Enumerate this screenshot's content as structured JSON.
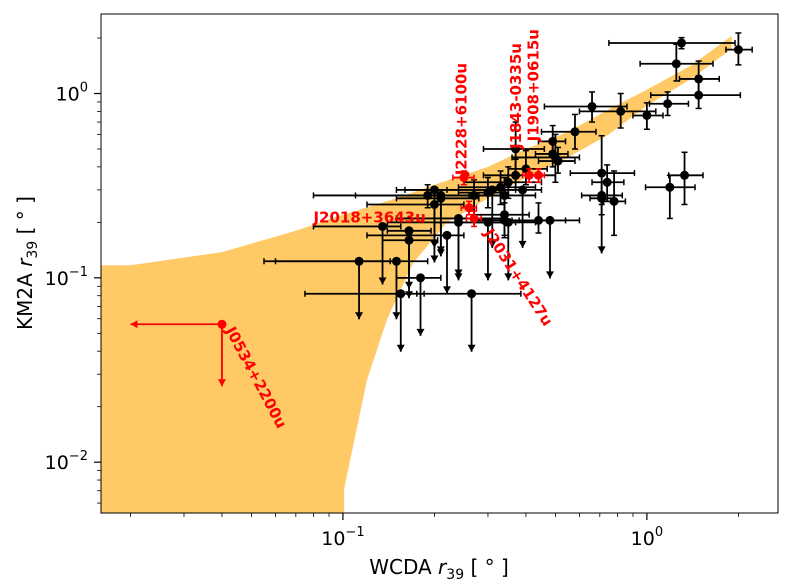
{
  "chart_data": {
    "type": "scatter",
    "x_scale": "log",
    "y_scale": "log",
    "xlabel_text": "WCDA",
    "xlabel_sym": "r",
    "xlabel_sub": "39",
    "xlabel_unit": "[ ° ]",
    "ylabel_text": "KM2A",
    "ylabel_sym": "r",
    "ylabel_sub": "39",
    "ylabel_unit": "[ ° ]",
    "xlim": [
      0.016,
      2.7
    ],
    "ylim": [
      0.0053,
      2.7
    ],
    "x_ticks": [
      {
        "value": 0.1,
        "mant": "10",
        "exp": "−1"
      },
      {
        "value": 1.0,
        "mant": "10",
        "exp": "0"
      }
    ],
    "y_ticks": [
      {
        "value": 0.01,
        "mant": "10",
        "exp": "−2"
      },
      {
        "value": 0.1,
        "mant": "10",
        "exp": "−1"
      },
      {
        "value": 1.0,
        "mant": "10",
        "exp": "0"
      }
    ],
    "band_color": "#ffc966",
    "point_color": "#000000",
    "highlight_color": "#ff0000",
    "band_upper": [
      [
        0.016,
        0.117
      ],
      [
        0.02,
        0.117
      ],
      [
        0.04,
        0.138
      ],
      [
        0.07,
        0.18
      ],
      [
        0.1,
        0.22
      ],
      [
        0.15,
        0.27
      ],
      [
        0.2,
        0.32
      ],
      [
        0.3,
        0.4
      ],
      [
        0.4,
        0.5
      ],
      [
        0.55,
        0.62
      ],
      [
        0.75,
        0.82
      ],
      [
        1.0,
        1.05
      ],
      [
        1.4,
        1.42
      ],
      [
        1.9,
        2.05
      ]
    ],
    "band_lower": [
      [
        1.9,
        1.75
      ],
      [
        1.4,
        1.2
      ],
      [
        1.0,
        0.86
      ],
      [
        0.75,
        0.6
      ],
      [
        0.55,
        0.45
      ],
      [
        0.4,
        0.35
      ],
      [
        0.3,
        0.27
      ],
      [
        0.22,
        0.2
      ],
      [
        0.17,
        0.12
      ],
      [
        0.14,
        0.06
      ],
      [
        0.12,
        0.028
      ],
      [
        0.101,
        0.0072
      ],
      [
        0.101,
        0.0053
      ],
      [
        0.016,
        0.0053
      ]
    ],
    "points": [
      {
        "x": 1.3,
        "y": 1.88,
        "xerr": [
          0.55,
          0.65
        ],
        "yerr": [
          0.13,
          0.13
        ]
      },
      {
        "x": 2.0,
        "y": 1.73,
        "xerr": [
          0.18,
          0.22
        ],
        "yerr": [
          0.3,
          0.4
        ]
      },
      {
        "x": 1.25,
        "y": 1.45,
        "xerr": [
          0.3,
          0.4
        ],
        "yerr": [
          0.28,
          0.4
        ]
      },
      {
        "x": 1.48,
        "y": 1.2,
        "xerr": [
          0.2,
          0.25
        ],
        "yerr": [
          0.2,
          0.3
        ]
      },
      {
        "x": 1.48,
        "y": 0.98,
        "xerr": [
          0.45,
          0.55
        ],
        "yerr": [
          0.15,
          0.2
        ]
      },
      {
        "x": 1.17,
        "y": 0.88,
        "xerr": [
          0.15,
          0.2
        ],
        "yerr": [
          0.12,
          0.14
        ]
      },
      {
        "x": 0.66,
        "y": 0.85,
        "xerr": [
          0.2,
          0.2
        ],
        "yerr": [
          0.15,
          0.17
        ]
      },
      {
        "x": 0.82,
        "y": 0.8,
        "xerr": [
          0.22,
          0.25
        ],
        "yerr": [
          0.15,
          0.2
        ]
      },
      {
        "x": 1.0,
        "y": 0.76,
        "xerr": [
          0.1,
          0.13
        ],
        "yerr": [
          0.12,
          0.13
        ]
      },
      {
        "x": 0.58,
        "y": 0.62,
        "xerr": [
          0.13,
          0.1
        ],
        "yerr": [
          0.12,
          0.15
        ]
      },
      {
        "x": 0.37,
        "y": 0.5,
        "xerr": [
          0.08,
          0.09
        ],
        "yerr": [
          0.15,
          0.2
        ]
      },
      {
        "x": 0.49,
        "y": 0.55,
        "xerr": [
          0.05,
          0.05
        ],
        "yerr": [
          0.08,
          0.12
        ]
      },
      {
        "x": 0.49,
        "y": 0.47,
        "xerr": [
          0.06,
          0.06
        ],
        "yerr": [
          0.07,
          0.09
        ]
      },
      {
        "x": 0.51,
        "y": 0.43,
        "xerr": [
          0.07,
          0.07
        ],
        "yerr": [
          0.06,
          0.08
        ]
      },
      {
        "x": 0.5,
        "y": 0.45,
        "xerr": [
          0.14,
          0.1
        ],
        "yerr": [
          0.12,
          0.15
        ]
      },
      {
        "x": 0.4,
        "y": 0.39,
        "xerr": [
          0.05,
          0.07
        ],
        "yerr": [
          0.07,
          0.1
        ]
      },
      {
        "x": 0.37,
        "y": 0.36,
        "xerr": [
          0.08,
          0.13
        ],
        "yerr": [
          0.06,
          0.08
        ]
      },
      {
        "x": 0.35,
        "y": 0.33,
        "xerr": [
          0.1,
          0.1
        ],
        "yerr": [
          0.06,
          0.07
        ]
      },
      {
        "x": 0.33,
        "y": 0.31,
        "xerr": [
          0.09,
          0.1
        ],
        "yerr": [
          0.06,
          0.07
        ]
      },
      {
        "x": 0.34,
        "y": 0.28,
        "xerr": [
          0.07,
          0.09
        ],
        "yerr": [
          0.06,
          0.07
        ]
      },
      {
        "x": 0.27,
        "y": 0.28,
        "xerr": [
          0.06,
          0.06
        ],
        "yerr": [
          0.06,
          0.06
        ]
      },
      {
        "x": 0.3,
        "y": 0.29,
        "xerr": [
          0.06,
          0.05
        ],
        "yerr": [
          0.05,
          0.06
        ]
      },
      {
        "x": 0.71,
        "y": 0.37,
        "xerr": [
          0.15,
          0.2
        ],
        "yerr": [
          0.12,
          0.22
        ]
      },
      {
        "x": 1.33,
        "y": 0.36,
        "xerr": [
          0.15,
          0.2
        ],
        "yerr": [
          0.11,
          0.12
        ]
      },
      {
        "x": 0.74,
        "y": 0.33,
        "xerr": [
          0.08,
          0.1
        ],
        "yerr": [
          0.07,
          0.08
        ]
      },
      {
        "x": 1.19,
        "y": 0.31,
        "xerr": [
          0.2,
          0.25
        ],
        "yerr": [
          0.1,
          0.05
        ]
      },
      {
        "x": 0.71,
        "y": 0.27,
        "xerr": [
          0.06,
          0.07
        ],
        "yerr": [
          0.05,
          0.06
        ]
      },
      {
        "x": 0.78,
        "y": 0.26,
        "xerr": [
          0.06,
          0.07
        ],
        "yerr": [
          0.09,
          0.12
        ]
      },
      {
        "x": 0.34,
        "y": 0.22,
        "xerr": [
          0.07,
          0.07
        ],
        "yerr": [
          0.05,
          0.07
        ]
      },
      {
        "x": 0.34,
        "y": 0.205,
        "xerr": [
          0.07,
          0.13
        ],
        "yerr": [
          0.04,
          0.05
        ]
      },
      {
        "x": 0.44,
        "y": 0.205,
        "xerr": [
          0.08,
          0.1
        ],
        "yerr": [
          0.03,
          0.05
        ]
      },
      {
        "x": 0.19,
        "y": 0.28,
        "xerr": [
          0.08,
          0.09
        ],
        "yerr": [
          0.04,
          0.04
        ]
      }
    ],
    "upper_limits": [
      {
        "x": 0.48,
        "y": 0.205,
        "xerr": [
          0.1,
          0.12
        ]
      },
      {
        "x": 0.71,
        "y": 0.28,
        "xerr": [
          0.1,
          0.12
        ]
      },
      {
        "x": 0.35,
        "y": 0.2,
        "xerr": [
          0.08,
          0.08
        ]
      },
      {
        "x": 0.39,
        "y": 0.3,
        "xerr": [
          0.2,
          0.06
        ]
      },
      {
        "x": 0.31,
        "y": 0.3,
        "xerr": [
          0.15,
          0.06
        ]
      },
      {
        "x": 0.3,
        "y": 0.2,
        "xerr": [
          0.1,
          0.07
        ]
      },
      {
        "x": 0.24,
        "y": 0.21,
        "xerr": [
          0.09,
          0.1
        ]
      },
      {
        "x": 0.24,
        "y": 0.2,
        "xerr": [
          0.1,
          0.1
        ]
      },
      {
        "x": 0.21,
        "y": 0.28,
        "xerr": [
          0.13,
          0.05
        ]
      },
      {
        "x": 0.21,
        "y": 0.27,
        "xerr": [
          0.06,
          0.07
        ]
      },
      {
        "x": 0.2,
        "y": 0.25,
        "xerr": [
          0.08,
          0.05
        ]
      },
      {
        "x": 0.2,
        "y": 0.3,
        "xerr": [
          0.05,
          0.02
        ]
      },
      {
        "x": 0.22,
        "y": 0.17,
        "xerr": [
          0.1,
          0.03
        ]
      },
      {
        "x": 0.135,
        "y": 0.19,
        "xerr": [
          0.055,
          0.02
        ]
      },
      {
        "x": 0.165,
        "y": 0.18,
        "xerr": [
          0.025,
          0.03
        ]
      },
      {
        "x": 0.165,
        "y": 0.16,
        "xerr": [
          0.03,
          0.04
        ]
      },
      {
        "x": 0.15,
        "y": 0.123,
        "xerr": [
          0.09,
          0.04
        ]
      },
      {
        "x": 0.113,
        "y": 0.123,
        "xerr": [
          0.058,
          0.03
        ]
      },
      {
        "x": 0.155,
        "y": 0.082,
        "xerr": [
          0.08,
          0.03
        ]
      },
      {
        "x": 0.18,
        "y": 0.1,
        "xerr": [
          0.03,
          0.03
        ]
      },
      {
        "x": 0.265,
        "y": 0.082,
        "xerr": [
          0.09,
          0.12
        ]
      }
    ],
    "highlighted": [
      {
        "name": "J0534+2200u",
        "x": 0.04,
        "y": 0.056,
        "upper_limit": true,
        "xerr": [
          0.02,
          0.0
        ],
        "label_pos": [
          0.041,
          0.052
        ],
        "label_angle": 62
      },
      {
        "name": "J2031+4127u",
        "x": 0.27,
        "y": 0.21,
        "upper_limit": false,
        "xerr": [
          0.015,
          0.015
        ],
        "yerr": [
          0.02,
          0.02
        ],
        "label_pos": [
          0.29,
          0.175
        ],
        "label_angle": 57
      },
      {
        "name": "J2018+3643u",
        "x": 0.26,
        "y": 0.24,
        "upper_limit": false,
        "xerr": [
          0.015,
          0.015
        ],
        "yerr": [
          0.02,
          0.02
        ],
        "label_pos": [
          0.08,
          0.2
        ],
        "label_angle": 0
      },
      {
        "name": "J2228+6100u",
        "x": 0.25,
        "y": 0.35,
        "upper_limit": false,
        "xerr": [
          0.02,
          0.02
        ],
        "yerr": [
          0.03,
          0.03
        ],
        "label_pos": [
          0.255,
          0.36
        ],
        "label_angle": -90
      },
      {
        "name": "J1843-0335u",
        "x": 0.41,
        "y": 0.36,
        "upper_limit": false,
        "xerr": [
          0.02,
          0.02
        ],
        "yerr": [
          0.03,
          0.03
        ],
        "label_pos": [
          0.385,
          0.5
        ],
        "label_angle": -90
      },
      {
        "name": "J1908+0615u",
        "x": 0.44,
        "y": 0.36,
        "upper_limit": false,
        "xerr": [
          0.02,
          0.02
        ],
        "yerr": [
          0.03,
          0.03
        ],
        "label_pos": [
          0.44,
          0.55
        ],
        "label_angle": -90
      }
    ]
  }
}
